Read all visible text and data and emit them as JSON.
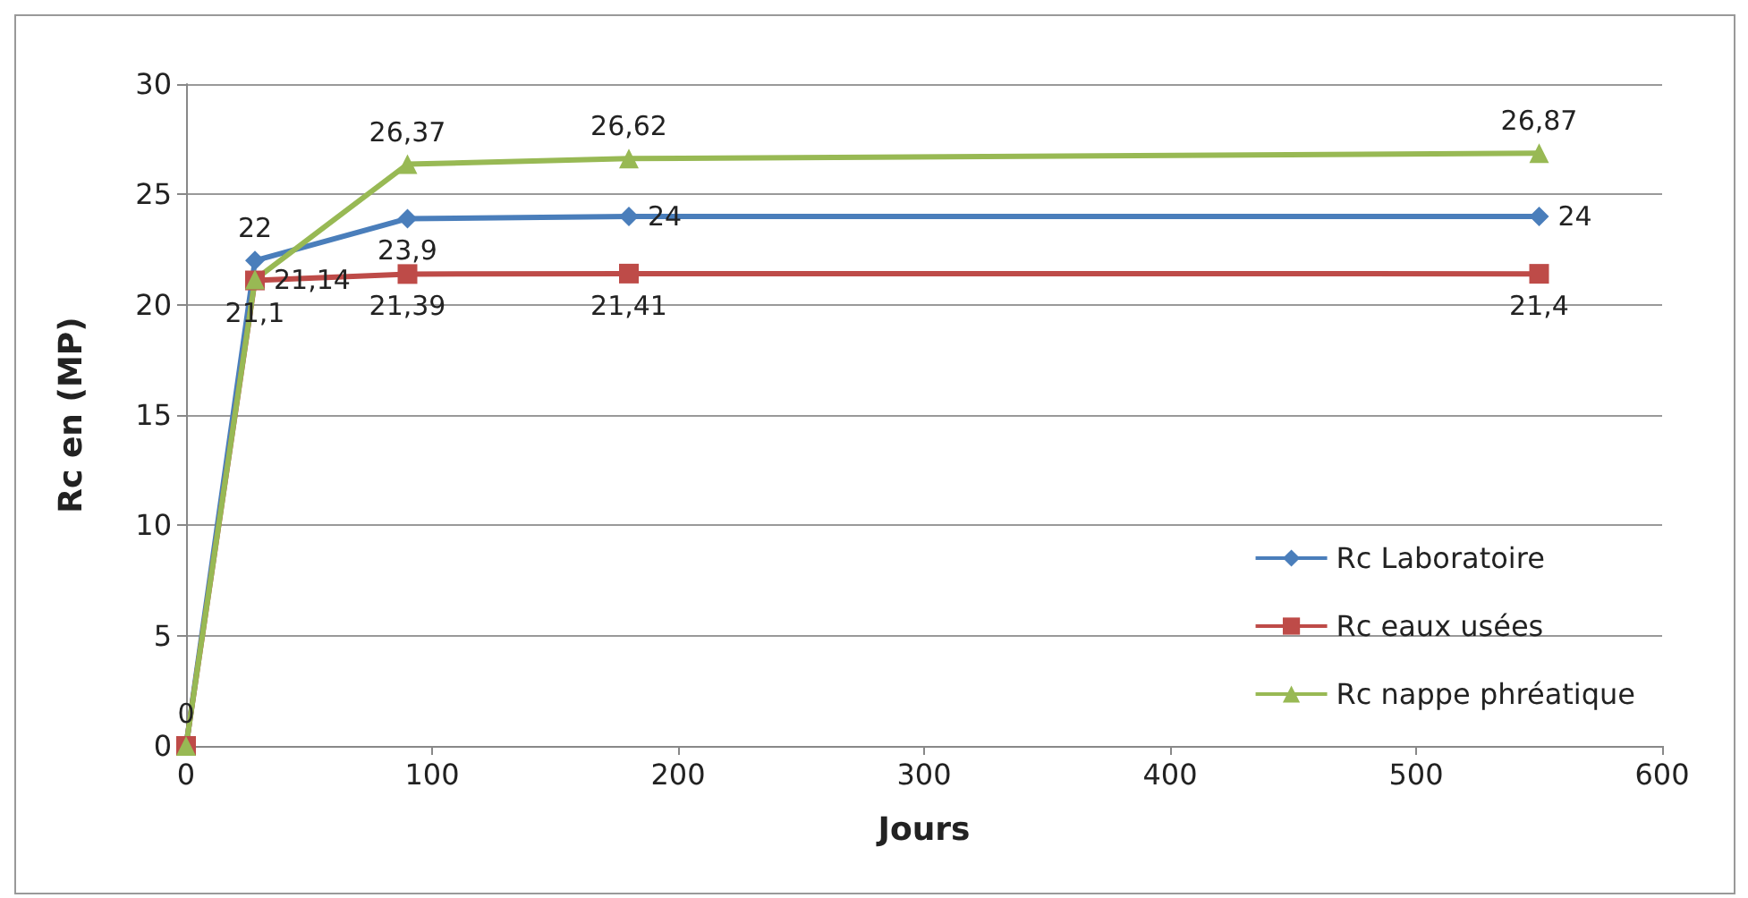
{
  "chart_data": {
    "type": "line",
    "xlabel": "Jours",
    "ylabel": "Rc en (MP)",
    "x": [
      0,
      28,
      90,
      180,
      550
    ],
    "series": [
      {
        "name": "Rc Laboratoire",
        "color": "#4a7ebb",
        "marker": "diamond",
        "values": [
          0,
          22,
          23.9,
          24,
          24
        ],
        "value_labels": [
          "0",
          "22",
          "23,9",
          "24",
          "24"
        ]
      },
      {
        "name": "Rc eaux usées",
        "color": "#be4b48",
        "marker": "square",
        "values": [
          0,
          21.1,
          21.39,
          21.41,
          21.4
        ],
        "value_labels": [
          null,
          "21,1",
          "21,39",
          "21,41",
          "21,4"
        ]
      },
      {
        "name": "Rc nappe phréatique",
        "color": "#98b954",
        "marker": "triangle",
        "values": [
          0,
          21.14,
          26.37,
          26.62,
          26.87
        ],
        "value_labels": [
          null,
          "21,14",
          "26,37",
          "26,62",
          "26,87"
        ]
      }
    ],
    "xlim": [
      0,
      600
    ],
    "xticks": [
      0,
      100,
      200,
      300,
      400,
      500,
      600
    ],
    "ylim": [
      0,
      30
    ],
    "yticks": [
      0,
      5,
      10,
      15,
      20,
      25,
      30
    ],
    "grid": "y",
    "legend": "right"
  }
}
